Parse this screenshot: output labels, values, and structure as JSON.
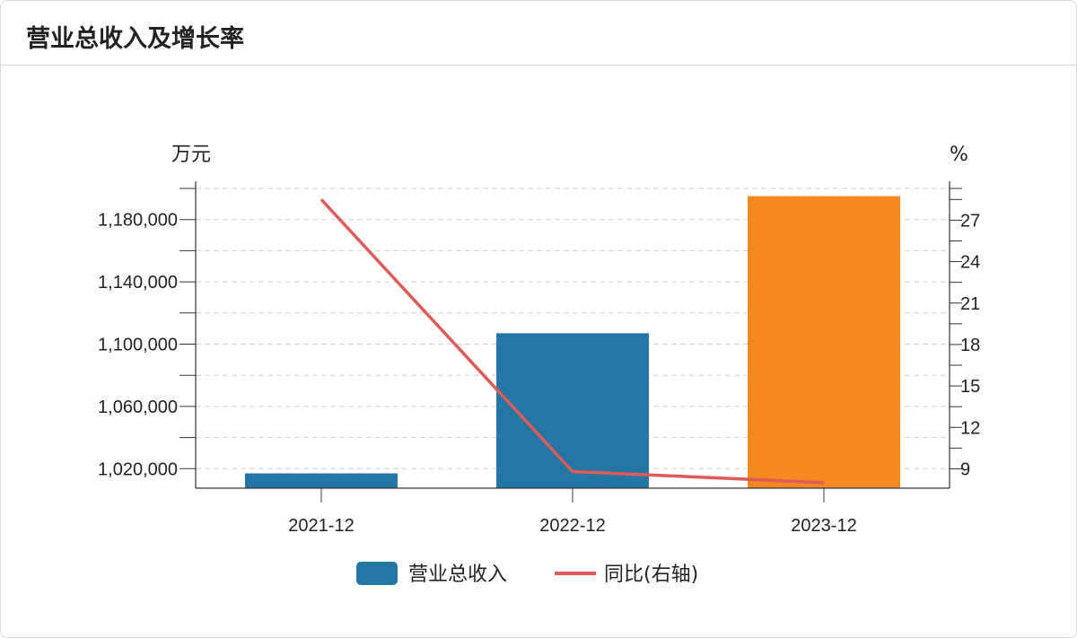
{
  "card": {
    "title": "营业总收入及增长率"
  },
  "chart_data": {
    "type": "bar",
    "categories": [
      "2021-12",
      "2022-12",
      "2023-12"
    ],
    "series": [
      {
        "name": "营业总收入",
        "type": "bar",
        "values": [
          1017000,
          1107000,
          1195000
        ],
        "axis": "left"
      },
      {
        "name": "同比(右轴)",
        "type": "line",
        "values": [
          28.5,
          8.8,
          8.0
        ],
        "axis": "right"
      }
    ],
    "left_axis": {
      "unit": "万元",
      "ticks": [
        1020000,
        1060000,
        1100000,
        1140000,
        1180000
      ],
      "tick_labels": [
        "1,020,000",
        "1,060,000",
        "1,100,000",
        "1,140,000",
        "1,180,000"
      ],
      "range": [
        1007500,
        1200000
      ]
    },
    "right_axis": {
      "unit": "%",
      "ticks": [
        9,
        12,
        15,
        18,
        21,
        24,
        27
      ],
      "range": [
        7.6,
        29.3
      ]
    },
    "colors": {
      "bar": "#2477a5",
      "bar_highlight": "#f5891f",
      "line": "#e05a5a",
      "grid": "#d3d3d3",
      "axis": "#333333"
    },
    "grid": true,
    "legend": "bottom-center"
  }
}
